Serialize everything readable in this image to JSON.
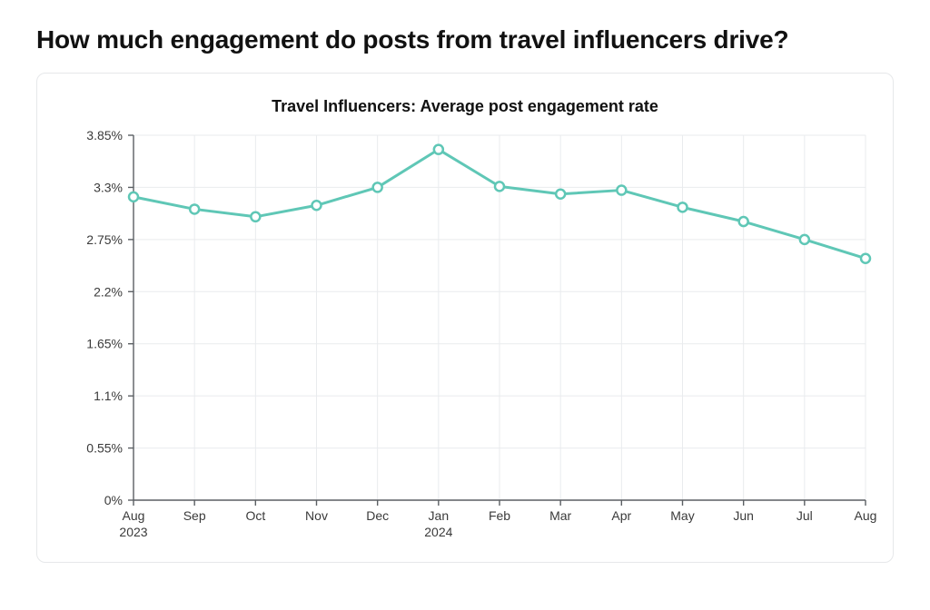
{
  "heading": "How much engagement do posts from travel influencers drive?",
  "chart": {
    "type": "line",
    "title": "Travel Influencers: Average post engagement rate",
    "title_fontsize": 18,
    "background_color": "#ffffff",
    "card_border_color": "#e6e8ea",
    "grid_color": "#e9ebee",
    "axis_color": "#5b5f63",
    "label_color": "#3a3a3a",
    "y": {
      "min": 0,
      "max": 3.85,
      "ticks": [
        0,
        0.55,
        1.1,
        1.65,
        2.2,
        2.75,
        3.3,
        3.85
      ],
      "tick_labels": [
        "0%",
        "0.55%",
        "1.1%",
        "1.65%",
        "2.2%",
        "2.75%",
        "3.3%",
        "3.85%"
      ],
      "label_fontsize": 14
    },
    "x": {
      "categories": [
        "Aug",
        "Sep",
        "Oct",
        "Nov",
        "Dec",
        "Jan",
        "Feb",
        "Mar",
        "Apr",
        "May",
        "Jun",
        "Jul",
        "Aug"
      ],
      "sublabels": {
        "0": "2023",
        "5": "2024"
      },
      "label_fontsize": 14
    },
    "series": {
      "name": "Engagement rate",
      "color": "#5fc7b6",
      "line_width": 3,
      "marker": {
        "shape": "circle",
        "radius": 5,
        "fill": "#ffffff",
        "stroke": "#5fc7b6",
        "stroke_width": 2.5
      },
      "values": [
        3.2,
        3.07,
        2.99,
        3.11,
        3.3,
        3.7,
        3.31,
        3.23,
        3.27,
        3.09,
        2.94,
        2.75,
        2.55
      ]
    }
  }
}
